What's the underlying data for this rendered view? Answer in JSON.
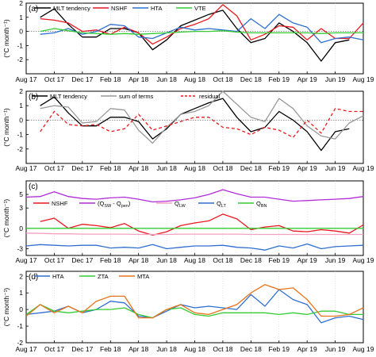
{
  "chart_data": [
    {
      "type": "line",
      "panel_label": "(a)",
      "ylabel": "(°C month⁻¹)",
      "ylim": [
        -3,
        2
      ],
      "yticks": [
        -2,
        -1,
        0,
        1,
        2
      ],
      "x_tick_labels": [
        "Aug 17",
        "Oct 17",
        "Dec 17",
        "Feb 18",
        "Apr 18",
        "Jun 18",
        "Aug 18",
        "Oct 18",
        "Dec 18",
        "Feb 19",
        "Apr 19",
        "Jun 19",
        "Aug 19"
      ],
      "x_tick_positions": [
        0,
        2,
        4,
        6,
        8,
        10,
        12,
        14,
        16,
        18,
        20,
        22,
        24
      ],
      "x_range": [
        0,
        24
      ],
      "zero_line": true,
      "legend_placement": "top-left",
      "series": [
        {
          "name": "MLT tendency",
          "color": "#000000",
          "style": "solid",
          "x": [
            1,
            2,
            3,
            4,
            5,
            6,
            7,
            8,
            9,
            10,
            11,
            12,
            13,
            14,
            15,
            16,
            17,
            18,
            19,
            20,
            21,
            22,
            23
          ],
          "values": [
            1.0,
            1.6,
            0.5,
            -0.4,
            -0.4,
            0.2,
            0.2,
            -0.1,
            -1.3,
            -0.6,
            0.4,
            0.8,
            1.2,
            1.5,
            0.2,
            -0.8,
            -0.5,
            0.6,
            0.0,
            -0.8,
            -2.1,
            -0.8,
            -0.6
          ]
        },
        {
          "name": "NSHF",
          "color": "#e8181c",
          "style": "solid",
          "x": [
            1,
            2,
            3,
            4,
            5,
            6,
            7,
            8,
            9,
            10,
            11,
            12,
            13,
            14,
            15,
            16,
            17,
            18,
            19,
            20,
            21,
            22,
            23,
            24
          ],
          "values": [
            0.9,
            0.8,
            0.6,
            0.0,
            0.1,
            -0.2,
            0.3,
            -0.1,
            -0.9,
            -0.4,
            0.2,
            0.5,
            0.9,
            1.9,
            1.1,
            -0.6,
            -0.2,
            0.4,
            0.3,
            -0.6,
            0.2,
            -0.5,
            -0.5,
            0.6
          ]
        },
        {
          "name": "HTA",
          "color": "#2f6fd0",
          "style": "solid",
          "x": [
            1,
            2,
            3,
            4,
            5,
            6,
            7,
            8,
            9,
            10,
            11,
            12,
            13,
            14,
            15,
            16,
            17,
            18,
            19,
            20,
            21,
            22,
            23,
            24
          ],
          "values": [
            -0.2,
            -0.1,
            0.2,
            -0.2,
            0.0,
            0.5,
            0.4,
            -0.4,
            -0.5,
            -0.1,
            0.3,
            0.1,
            0.2,
            0.1,
            0.0,
            0.9,
            0.2,
            1.2,
            0.6,
            0.3,
            -0.8,
            -0.5,
            -0.4,
            -0.6
          ]
        },
        {
          "name": "VTE",
          "color": "#33cc33",
          "style": "solid",
          "x": [
            1,
            2,
            3,
            4,
            5,
            6,
            7,
            8,
            9,
            10,
            11,
            12,
            13,
            14,
            15,
            16,
            17,
            18,
            19,
            20,
            21,
            22,
            23,
            24
          ],
          "values": [
            0.0,
            0.2,
            0.05,
            -0.1,
            -0.15,
            -0.2,
            -0.15,
            -0.2,
            -0.15,
            -0.1,
            -0.05,
            0.0,
            0.0,
            0.05,
            -0.05,
            -0.1,
            -0.1,
            -0.1,
            -0.1,
            -0.1,
            -0.15,
            -0.1,
            -0.1,
            -0.1
          ]
        }
      ]
    },
    {
      "type": "line",
      "panel_label": "(b)",
      "ylabel": "(°C month⁻¹)",
      "ylim": [
        -3,
        2
      ],
      "yticks": [
        -2,
        -1,
        0,
        1,
        2
      ],
      "x_tick_labels": [
        "Aug 17",
        "Oct 17",
        "Dec 17",
        "Feb 18",
        "Apr 18",
        "Jun 18",
        "Aug 18",
        "Oct 18",
        "Dec 18",
        "Feb 19",
        "Apr 19",
        "Jun 19",
        "Aug 19"
      ],
      "x_tick_positions": [
        0,
        2,
        4,
        6,
        8,
        10,
        12,
        14,
        16,
        18,
        20,
        22,
        24
      ],
      "x_range": [
        0,
        24
      ],
      "zero_line": true,
      "legend_placement": "top",
      "series": [
        {
          "name": "MLT tendency",
          "color": "#000000",
          "style": "solid",
          "x": [
            1,
            2,
            3,
            4,
            5,
            6,
            7,
            8,
            9,
            10,
            11,
            12,
            13,
            14,
            15,
            16,
            17,
            18,
            19,
            20,
            21,
            22,
            23
          ],
          "values": [
            1.0,
            1.6,
            0.5,
            -0.4,
            -0.4,
            0.2,
            0.2,
            -0.1,
            -1.3,
            -0.6,
            0.4,
            0.8,
            1.2,
            1.5,
            0.2,
            -0.8,
            -0.5,
            0.6,
            0.0,
            -0.8,
            -2.1,
            -0.8,
            -0.6
          ]
        },
        {
          "name": "sum of terms",
          "color": "#999999",
          "style": "solid",
          "x": [
            1,
            2,
            3,
            4,
            5,
            6,
            7,
            8,
            9,
            10,
            11,
            12,
            13,
            14,
            15,
            16,
            17,
            18,
            19,
            20,
            21,
            22,
            23,
            24
          ],
          "values": [
            0.8,
            1.0,
            0.9,
            -0.2,
            -0.1,
            0.8,
            0.7,
            -0.7,
            -1.6,
            -0.5,
            0.4,
            0.6,
            1.0,
            2.0,
            1.1,
            0.2,
            -0.1,
            1.5,
            0.8,
            -0.4,
            -1.1,
            -1.3,
            -0.2,
            0.3
          ]
        },
        {
          "name": "residual",
          "color": "#e8181c",
          "style": "dashed",
          "x": [
            1,
            2,
            3,
            4,
            5,
            6,
            7,
            8,
            9,
            10,
            11,
            12,
            13,
            14,
            15,
            16,
            17,
            18,
            19,
            20,
            21,
            22,
            23,
            24
          ],
          "values": [
            -0.8,
            0.6,
            -0.3,
            -0.4,
            -0.3,
            -0.8,
            -0.6,
            0.4,
            -0.7,
            -0.4,
            -0.1,
            0.2,
            0.2,
            -0.5,
            -0.6,
            -1.0,
            -0.5,
            -0.7,
            -1.2,
            0.0,
            -0.9,
            0.8,
            0.6,
            0.6
          ]
        }
      ]
    },
    {
      "type": "line",
      "panel_label": "(c)",
      "ylabel": "(°C month⁻¹)",
      "ylim": [
        -4,
        7
      ],
      "yticks": [
        -3,
        0,
        3,
        5
      ],
      "x_tick_labels": [
        "Aug 17",
        "Oct 17",
        "Dec 17",
        "Feb 18",
        "Apr 18",
        "Jun 18",
        "Aug 18",
        "Oct 18",
        "Dec 18",
        "Feb 19",
        "Apr 19",
        "Jun 19",
        "Aug 19"
      ],
      "x_tick_positions": [
        0,
        2,
        4,
        6,
        8,
        10,
        12,
        14,
        16,
        18,
        20,
        22,
        24
      ],
      "x_range": [
        0,
        24
      ],
      "zero_line": false,
      "legend_placement": "middle",
      "series": [
        {
          "name": "NSHF",
          "color": "#e8181c",
          "style": "solid",
          "x": [
            1,
            2,
            3,
            4,
            5,
            6,
            7,
            8,
            9,
            10,
            11,
            12,
            13,
            14,
            15,
            16,
            17,
            18,
            19,
            20,
            21,
            22,
            23,
            24
          ],
          "values": [
            1.0,
            1.5,
            0.0,
            0.6,
            0.4,
            0.1,
            0.7,
            -0.4,
            -1.0,
            -0.5,
            0.4,
            0.8,
            1.1,
            2.1,
            1.4,
            -0.2,
            0.2,
            0.4,
            -0.4,
            -0.5,
            -0.2,
            -0.4,
            -0.7,
            0.5
          ]
        },
        {
          "name": "(Q_SW - Q_pen)",
          "label_main": "(Q",
          "label_sub1": "SW",
          "label_mid": " - Q",
          "label_sub2": "pen",
          "label_end": ")",
          "color": "#b12cd8",
          "style": "solid",
          "x": [
            0,
            1,
            2,
            3,
            4,
            5,
            6,
            7,
            8,
            9,
            10,
            11,
            12,
            13,
            14,
            15,
            16,
            17,
            18,
            19,
            20,
            21,
            22,
            23,
            24
          ],
          "values": [
            4.6,
            4.7,
            5.4,
            4.7,
            4.4,
            4.3,
            4.5,
            4.6,
            4.3,
            3.9,
            4.0,
            4.2,
            4.5,
            5.0,
            5.7,
            5.1,
            4.6,
            4.6,
            4.3,
            4.0,
            4.1,
            4.2,
            4.3,
            4.4,
            4.7
          ]
        },
        {
          "name": "Q_LW",
          "label_main": "Q",
          "label_sub1": "LW",
          "color": "#f4a0c0",
          "style": "solid",
          "x": [
            0,
            1,
            2,
            3,
            4,
            5,
            6,
            7,
            8,
            9,
            10,
            11,
            12,
            13,
            14,
            15,
            16,
            17,
            18,
            19,
            20,
            21,
            22,
            23,
            24
          ],
          "values": [
            -0.7,
            -0.75,
            -0.8,
            -0.8,
            -0.85,
            -0.85,
            -0.85,
            -0.85,
            -0.9,
            -0.9,
            -0.9,
            -0.85,
            -0.85,
            -0.85,
            -0.85,
            -0.85,
            -0.9,
            -0.9,
            -0.9,
            -0.9,
            -0.9,
            -0.9,
            -0.9,
            -0.9,
            -0.9
          ]
        },
        {
          "name": "Q_LT",
          "label_main": "Q",
          "label_sub1": "LT",
          "color": "#2f6fd0",
          "style": "solid",
          "x": [
            0,
            1,
            2,
            3,
            4,
            5,
            6,
            7,
            8,
            9,
            10,
            11,
            12,
            13,
            14,
            15,
            16,
            17,
            18,
            19,
            20,
            21,
            22,
            23,
            24
          ],
          "values": [
            -2.6,
            -2.4,
            -2.5,
            -2.6,
            -2.5,
            -2.5,
            -2.9,
            -2.8,
            -2.9,
            -2.4,
            -3.0,
            -2.8,
            -2.6,
            -2.6,
            -2.5,
            -2.8,
            -2.9,
            -3.2,
            -2.6,
            -2.9,
            -2.3,
            -3.0,
            -2.7,
            -2.6,
            -2.5
          ]
        },
        {
          "name": "Q_BN",
          "label_main": "Q",
          "label_sub1": "BN",
          "color": "#33cc33",
          "style": "solid",
          "x": [
            0,
            1,
            2,
            3,
            4,
            5,
            6,
            7,
            8,
            9,
            10,
            11,
            12,
            13,
            14,
            15,
            16,
            17,
            18,
            19,
            20,
            21,
            22,
            23,
            24
          ],
          "values": [
            0.0,
            0.0,
            0.0,
            0.0,
            0.0,
            0.0,
            0.0,
            0.0,
            0.0,
            0.0,
            0.0,
            0.0,
            0.0,
            0.0,
            0.0,
            0.0,
            0.0,
            0.0,
            0.0,
            0.0,
            0.0,
            0.0,
            0.0,
            0.0,
            0.0
          ]
        }
      ]
    },
    {
      "type": "line",
      "panel_label": "(d)",
      "ylabel": "(°C month⁻¹)",
      "ylim": [
        -2,
        2.3
      ],
      "yticks": [
        -2,
        -1,
        0,
        1,
        2
      ],
      "x_tick_labels": [
        "Aug 17",
        "Oct 17",
        "Dec 17",
        "Feb 18",
        "Apr 18",
        "Jun 18",
        "Aug 18",
        "Oct 18",
        "Dec 18",
        "Feb 19",
        "Apr 19",
        "Jun 19",
        "Aug 19"
      ],
      "x_tick_positions": [
        0,
        2,
        4,
        6,
        8,
        10,
        12,
        14,
        16,
        18,
        20,
        22,
        24
      ],
      "x_range": [
        0,
        24
      ],
      "zero_line": false,
      "legend_placement": "top",
      "series": [
        {
          "name": "HTA",
          "color": "#2f6fd0",
          "style": "solid",
          "x": [
            0,
            1,
            2,
            3,
            4,
            5,
            6,
            7,
            8,
            9,
            10,
            11,
            12,
            13,
            14,
            15,
            16,
            17,
            18,
            19,
            20,
            21,
            22,
            23,
            24
          ],
          "values": [
            -0.3,
            -0.2,
            -0.1,
            0.2,
            -0.2,
            0.0,
            0.5,
            0.4,
            -0.4,
            -0.5,
            -0.1,
            0.3,
            0.1,
            0.2,
            0.1,
            0.0,
            0.9,
            0.2,
            1.2,
            0.6,
            0.3,
            -0.8,
            -0.5,
            -0.4,
            -0.6
          ]
        },
        {
          "name": "ZTA",
          "color": "#33cc33",
          "style": "solid",
          "x": [
            0,
            1,
            2,
            3,
            4,
            5,
            6,
            7,
            8,
            9,
            10,
            11,
            12,
            13,
            14,
            15,
            16,
            17,
            18,
            19,
            20,
            21,
            22,
            23,
            24
          ],
          "values": [
            -0.3,
            0.3,
            -0.1,
            -0.2,
            -0.1,
            0.0,
            0.0,
            0.1,
            -0.3,
            -0.5,
            0.0,
            0.1,
            -0.3,
            -0.4,
            -0.2,
            -0.2,
            -0.2,
            -0.2,
            -0.3,
            -0.2,
            -0.3,
            -0.1,
            -0.1,
            -0.3,
            -0.3
          ]
        },
        {
          "name": "MTA",
          "color": "#e8731c",
          "style": "solid",
          "x": [
            0,
            1,
            2,
            3,
            4,
            5,
            6,
            7,
            8,
            9,
            10,
            11,
            12,
            13,
            14,
            15,
            16,
            17,
            18,
            19,
            20,
            21,
            22,
            23,
            24
          ],
          "values": [
            -0.4,
            0.3,
            -0.2,
            0.2,
            -0.2,
            0.5,
            0.8,
            0.8,
            -0.5,
            -0.5,
            0.0,
            0.3,
            -0.2,
            -0.3,
            0.0,
            0.3,
            1.0,
            1.5,
            1.2,
            1.3,
            0.6,
            -0.4,
            -0.4,
            -0.3,
            0.1
          ]
        }
      ]
    }
  ]
}
